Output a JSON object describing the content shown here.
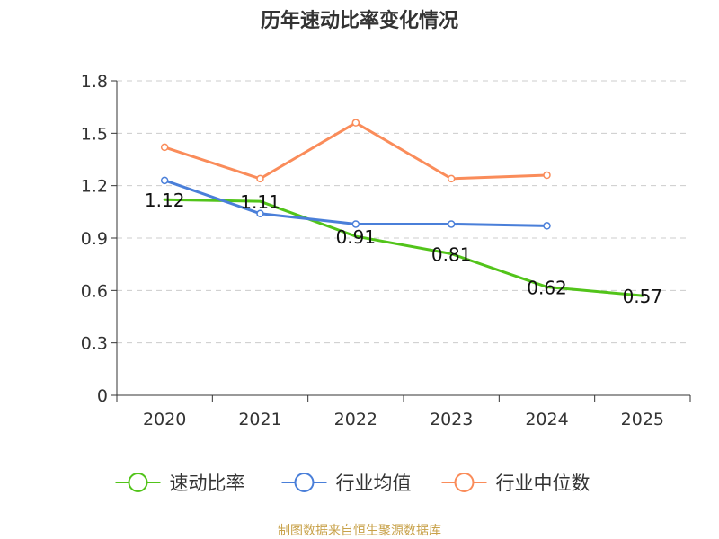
{
  "chart_data": {
    "type": "line",
    "title": "历年速动比率变化情况",
    "categories": [
      "2020",
      "2021",
      "2022",
      "2023",
      "2024",
      "2025"
    ],
    "ylim": [
      0,
      1.8
    ],
    "yticks": [
      "0",
      "0.3",
      "0.6",
      "0.9",
      "1.2",
      "1.5",
      "1.8"
    ],
    "grid": true,
    "legend_position": "bottom",
    "series": [
      {
        "name": "速动比率",
        "color": "#52c41a",
        "values": [
          1.12,
          1.11,
          0.91,
          0.81,
          0.62,
          0.57
        ],
        "labels": [
          "1.12",
          "1.11",
          "0.91",
          "0.81",
          "0.62",
          "0.57"
        ],
        "show_labels": true,
        "show_markers": false
      },
      {
        "name": "行业均值",
        "color": "#4a7fd9",
        "values": [
          1.23,
          1.04,
          0.98,
          0.98,
          0.97,
          null
        ],
        "show_labels": false,
        "show_markers": true
      },
      {
        "name": "行业中位数",
        "color": "#fa8c5a",
        "values": [
          1.42,
          1.24,
          1.56,
          1.24,
          1.26,
          null
        ],
        "show_labels": false,
        "show_markers": true
      }
    ]
  },
  "footer": {
    "source": "制图数据来自恒生聚源数据库",
    "color": "#c8a24a"
  }
}
